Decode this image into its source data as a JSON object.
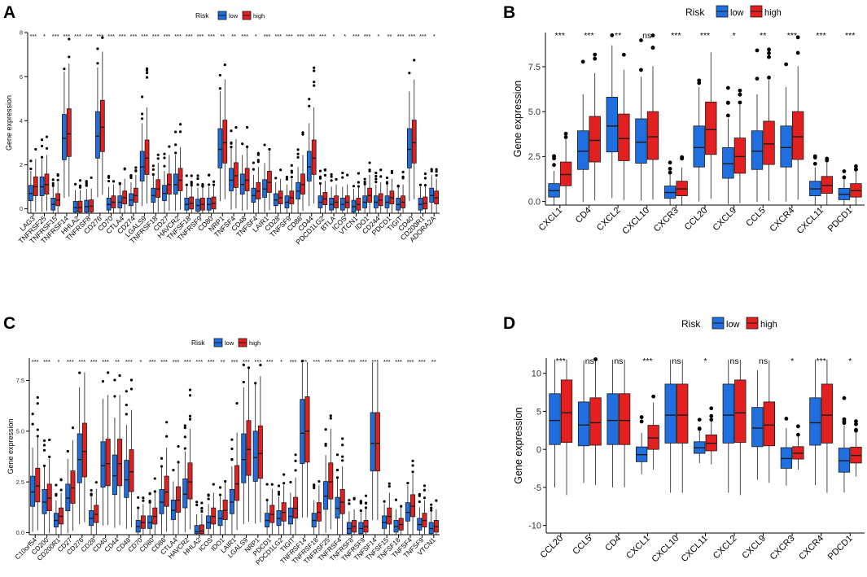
{
  "colors": {
    "low": "#1f6fe0",
    "high": "#e41f1f",
    "outline": "#1a1a1a"
  },
  "chart_data": [
    {
      "panel": "A",
      "type": "boxplot",
      "legend": {
        "title": "Risk",
        "entries": [
          "low",
          "high"
        ]
      },
      "ylabel": "Gene expression",
      "ylim": [
        -0.2,
        8
      ],
      "yticks": [
        0,
        2,
        4,
        6,
        8
      ],
      "categories": [
        "LAG3",
        "TNFRSF25",
        "TNFRSF15",
        "TNFRSF14",
        "HHLA2",
        "TNFRSF8",
        "CD276",
        "CD70",
        "CTLA4",
        "CD274",
        "LGALS9",
        "TNFRSF18",
        "CD27",
        "HAVCR2",
        "TNFSF18",
        "TNFRSF9",
        "CD80",
        "NRP1",
        "TNFSF4",
        "CD48",
        "TNFSF4",
        "LAIR1",
        "CD28",
        "TNFSF9",
        "CD86",
        "CD44",
        "PDCD1LG2",
        "BTLA",
        "ICOS",
        "VTCN1",
        "IDO1",
        "CD244",
        "PDCD1",
        "TIGIT",
        "CD40",
        "CD200R1",
        "ADORA2A"
      ],
      "significance": [
        "***",
        "*",
        "***",
        "***",
        "***",
        "***",
        "***",
        "***",
        "***",
        "***",
        "***",
        "***",
        "***",
        "***",
        "***",
        "***",
        "***",
        "**",
        "**",
        "***",
        "*",
        "***",
        "***",
        "***",
        "***",
        "***",
        "***",
        "*",
        "*",
        "***",
        "***",
        "*",
        "**",
        "***",
        "***",
        "***",
        "*"
      ],
      "series": [
        {
          "name": "low",
          "medians": [
            0.7,
            1.0,
            0.2,
            3.2,
            0.05,
            0.1,
            3.3,
            0.2,
            0.3,
            0.4,
            1.9,
            0.6,
            0.7,
            1.1,
            0.2,
            0.15,
            0.2,
            2.7,
            1.3,
            1.1,
            0.6,
            0.9,
            0.4,
            0.3,
            0.8,
            1.9,
            0.3,
            0.2,
            0.2,
            0.1,
            0.3,
            0.3,
            0.3,
            0.2,
            2.7,
            0.2,
            0.6
          ]
        },
        {
          "name": "high",
          "medians": [
            1.0,
            1.1,
            0.4,
            3.4,
            0.06,
            0.12,
            3.7,
            0.3,
            0.5,
            0.6,
            2.3,
            0.9,
            1.1,
            1.3,
            0.25,
            0.2,
            0.25,
            3.0,
            1.5,
            1.3,
            0.8,
            1.2,
            0.5,
            0.5,
            1.1,
            2.3,
            0.45,
            0.3,
            0.3,
            0.2,
            0.6,
            0.4,
            0.5,
            0.3,
            3.0,
            0.25,
            0.5
          ]
        }
      ]
    },
    {
      "panel": "B",
      "type": "boxplot",
      "legend": {
        "title": "Risk",
        "entries": [
          "low",
          "high"
        ]
      },
      "ylabel": "Gene expression",
      "ylim": [
        -0.2,
        9.4
      ],
      "yticks": [
        0.0,
        2.5,
        5.0,
        7.5
      ],
      "categories": [
        "CXCL1",
        "CD4",
        "CXCL2",
        "CXCL10",
        "CXCR3",
        "CCL20",
        "CXCL9",
        "CCL5",
        "CXCR4",
        "CXCL11",
        "PDCD1"
      ],
      "significance": [
        "***",
        "***",
        "**",
        "ns",
        "***",
        "***",
        "*",
        "**",
        "***",
        "***",
        "***"
      ],
      "series": [
        {
          "name": "low",
          "medians": [
            0.6,
            2.8,
            4.2,
            3.3,
            0.5,
            3.0,
            2.1,
            2.8,
            3.0,
            0.7,
            0.4
          ]
        },
        {
          "name": "high",
          "medians": [
            1.5,
            3.4,
            3.5,
            3.6,
            0.7,
            4.0,
            2.5,
            3.2,
            3.6,
            0.9,
            0.6
          ]
        }
      ]
    },
    {
      "panel": "C",
      "type": "boxplot",
      "legend": {
        "title": "Risk",
        "entries": [
          "low",
          "high"
        ]
      },
      "ylabel": "Gene expression",
      "ylim": [
        -0.1,
        8.6
      ],
      "yticks": [
        0.0,
        2.5,
        5.0,
        7.5
      ],
      "categories": [
        "C10orf54",
        "CD200",
        "CD200R1",
        "CD27",
        "CD276",
        "CD28",
        "CD40",
        "CD44",
        "CD48",
        "CD70",
        "CD80",
        "CD86",
        "CTLA4",
        "HAVCR2",
        "HHLA2",
        "ICOS",
        "IDO1",
        "LAIR1",
        "LGALS9",
        "NRP1",
        "PDCD1",
        "PDCD1LG2",
        "TIGIT",
        "TNFRSF14",
        "TNFRSF18",
        "TNFRSF25",
        "TNFRSF4",
        "TNFRSF8",
        "TNFRSF9",
        "TNFSF14",
        "TNFSF15",
        "TNFSF18",
        "TNFSF4",
        "TNFSF9",
        "VTCN1"
      ],
      "significance": [
        "***",
        "***",
        "*",
        "***",
        "***",
        "***",
        "***",
        "**",
        "***",
        "*",
        "***",
        "***",
        "***",
        "***",
        "***",
        "***",
        "**",
        "***",
        "***",
        "***",
        "***",
        "*",
        "***",
        "**",
        "***",
        "***",
        "***",
        "***",
        "***",
        "***",
        "***",
        "***",
        "***",
        "***",
        "**"
      ],
      "series": [
        {
          "name": "low",
          "medians": [
            2.0,
            1.5,
            0.6,
            1.7,
            3.6,
            0.7,
            3.3,
            2.8,
            2.6,
            0.3,
            0.5,
            1.5,
            1.1,
            1.9,
            0.05,
            0.5,
            0.7,
            1.5,
            3.6,
            3.7,
            0.6,
            0.7,
            0.8,
            4.9,
            0.6,
            1.8,
            1.2,
            0.2,
            0.2,
            4.4,
            0.5,
            0.3,
            1.0,
            0.4,
            0.2
          ]
        },
        {
          "name": "high",
          "medians": [
            2.3,
            1.7,
            0.8,
            2.2,
            4.0,
            0.9,
            3.4,
            3.4,
            3.0,
            0.5,
            0.8,
            2.0,
            1.6,
            2.5,
            0.08,
            0.8,
            1.1,
            2.4,
            4.1,
            3.9,
            0.9,
            1.0,
            1.2,
            5.0,
            1.0,
            2.5,
            1.5,
            0.3,
            0.3,
            4.4,
            0.8,
            0.4,
            1.3,
            0.6,
            0.3
          ]
        }
      ]
    },
    {
      "panel": "D",
      "type": "boxplot",
      "legend": {
        "title": "Risk",
        "entries": [
          "low",
          "high"
        ]
      },
      "ylabel": "Gene expression",
      "ylim": [
        -11,
        12
      ],
      "yticks": [
        -10,
        -5,
        0,
        5,
        10
      ],
      "categories": [
        "CCL20",
        "CCL5",
        "CD4",
        "CXCL1",
        "CXCL10",
        "CXCL11",
        "CXCL2",
        "CXCL9",
        "CXCR3",
        "CXCR4",
        "PDCD1"
      ],
      "significance": [
        "***",
        "ns",
        "ns",
        "***",
        "ns",
        "*",
        "ns",
        "ns",
        "*",
        "***",
        "*"
      ],
      "series": [
        {
          "name": "low",
          "medians": [
            3.8,
            3.2,
            3.8,
            -0.7,
            4.5,
            0.2,
            4.5,
            2.8,
            -1.2,
            3.5,
            -1.5
          ]
        },
        {
          "name": "high",
          "medians": [
            4.8,
            3.5,
            3.8,
            1.5,
            4.5,
            0.8,
            4.8,
            3.2,
            -0.5,
            4.5,
            -0.8
          ]
        }
      ]
    }
  ]
}
